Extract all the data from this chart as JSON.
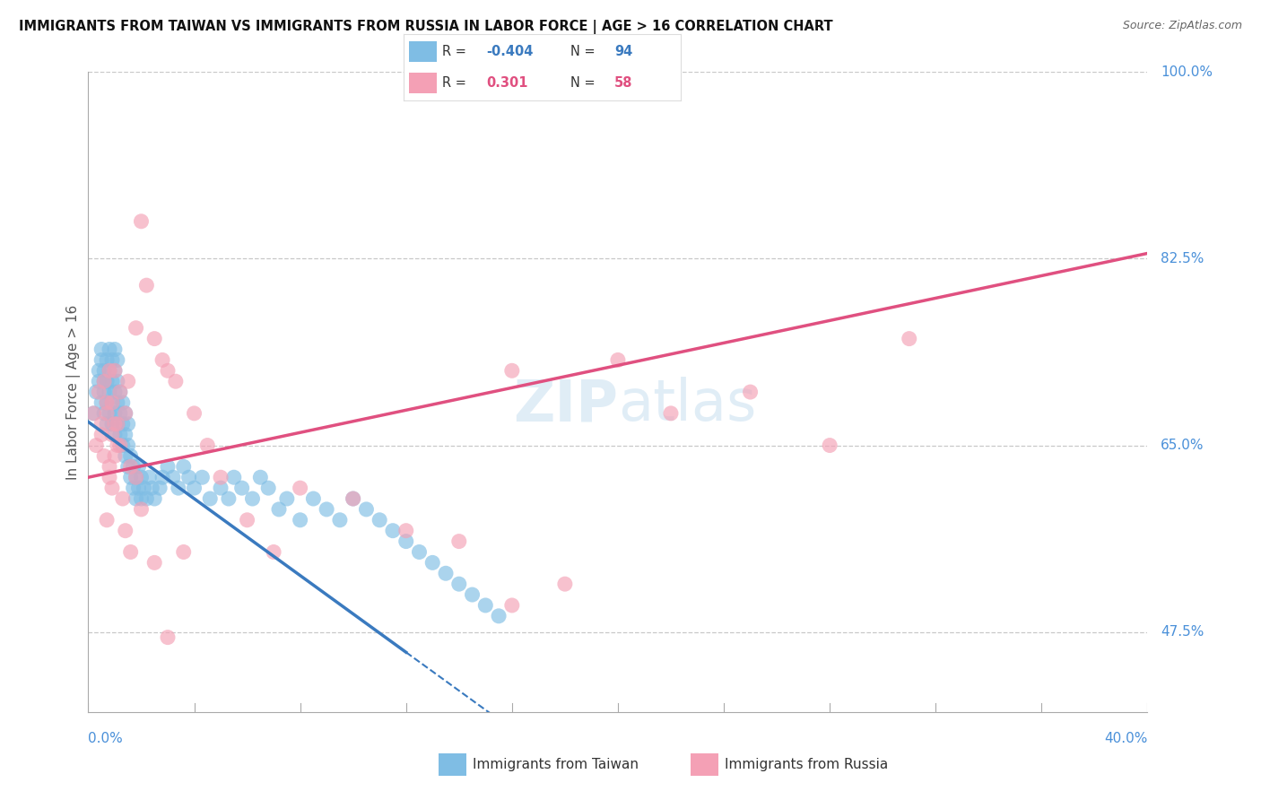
{
  "title": "IMMIGRANTS FROM TAIWAN VS IMMIGRANTS FROM RUSSIA IN LABOR FORCE | AGE > 16 CORRELATION CHART",
  "source": "Source: ZipAtlas.com",
  "yaxis_label": "In Labor Force | Age > 16",
  "legend_taiwan": "Immigrants from Taiwan",
  "legend_russia": "Immigrants from Russia",
  "taiwan_R": "-0.404",
  "taiwan_N": "94",
  "russia_R": "0.301",
  "russia_N": "58",
  "taiwan_color": "#7fbde4",
  "russia_color": "#f4a0b5",
  "taiwan_line_color": "#3a7abf",
  "russia_line_color": "#e05080",
  "background_color": "#ffffff",
  "grid_color": "#c8c8c8",
  "xlim": [
    0.0,
    0.4
  ],
  "ylim": [
    0.4,
    1.0
  ],
  "tick_label_color": "#4a90d9",
  "taiwan_scatter_x": [
    0.002,
    0.003,
    0.004,
    0.004,
    0.005,
    0.005,
    0.005,
    0.006,
    0.006,
    0.006,
    0.006,
    0.007,
    0.007,
    0.007,
    0.007,
    0.008,
    0.008,
    0.008,
    0.008,
    0.009,
    0.009,
    0.009,
    0.009,
    0.01,
    0.01,
    0.01,
    0.01,
    0.01,
    0.011,
    0.011,
    0.011,
    0.011,
    0.012,
    0.012,
    0.012,
    0.013,
    0.013,
    0.013,
    0.014,
    0.014,
    0.014,
    0.015,
    0.015,
    0.015,
    0.016,
    0.016,
    0.017,
    0.017,
    0.018,
    0.018,
    0.019,
    0.019,
    0.02,
    0.02,
    0.021,
    0.022,
    0.023,
    0.024,
    0.025,
    0.027,
    0.028,
    0.03,
    0.032,
    0.034,
    0.036,
    0.038,
    0.04,
    0.043,
    0.046,
    0.05,
    0.053,
    0.055,
    0.058,
    0.062,
    0.065,
    0.068,
    0.072,
    0.075,
    0.08,
    0.085,
    0.09,
    0.095,
    0.1,
    0.105,
    0.11,
    0.115,
    0.12,
    0.125,
    0.13,
    0.135,
    0.14,
    0.145,
    0.15,
    0.155
  ],
  "taiwan_scatter_y": [
    0.68,
    0.7,
    0.72,
    0.71,
    0.69,
    0.73,
    0.74,
    0.68,
    0.7,
    0.72,
    0.71,
    0.67,
    0.69,
    0.71,
    0.73,
    0.68,
    0.7,
    0.72,
    0.74,
    0.67,
    0.69,
    0.71,
    0.73,
    0.66,
    0.68,
    0.7,
    0.72,
    0.74,
    0.67,
    0.69,
    0.71,
    0.73,
    0.66,
    0.68,
    0.7,
    0.65,
    0.67,
    0.69,
    0.64,
    0.66,
    0.68,
    0.63,
    0.65,
    0.67,
    0.62,
    0.64,
    0.61,
    0.63,
    0.6,
    0.62,
    0.61,
    0.63,
    0.6,
    0.62,
    0.61,
    0.6,
    0.62,
    0.61,
    0.6,
    0.61,
    0.62,
    0.63,
    0.62,
    0.61,
    0.63,
    0.62,
    0.61,
    0.62,
    0.6,
    0.61,
    0.6,
    0.62,
    0.61,
    0.6,
    0.62,
    0.61,
    0.59,
    0.6,
    0.58,
    0.6,
    0.59,
    0.58,
    0.6,
    0.59,
    0.58,
    0.57,
    0.56,
    0.55,
    0.54,
    0.53,
    0.52,
    0.51,
    0.5,
    0.49
  ],
  "russia_scatter_x": [
    0.002,
    0.003,
    0.004,
    0.005,
    0.005,
    0.006,
    0.006,
    0.007,
    0.007,
    0.008,
    0.008,
    0.009,
    0.009,
    0.01,
    0.01,
    0.011,
    0.012,
    0.013,
    0.014,
    0.015,
    0.016,
    0.018,
    0.02,
    0.022,
    0.025,
    0.028,
    0.03,
    0.033,
    0.036,
    0.04,
    0.045,
    0.05,
    0.06,
    0.07,
    0.08,
    0.1,
    0.12,
    0.14,
    0.16,
    0.18,
    0.007,
    0.008,
    0.009,
    0.01,
    0.011,
    0.012,
    0.014,
    0.016,
    0.018,
    0.02,
    0.025,
    0.03,
    0.16,
    0.2,
    0.22,
    0.25,
    0.28,
    0.31
  ],
  "russia_scatter_y": [
    0.68,
    0.65,
    0.7,
    0.67,
    0.66,
    0.64,
    0.71,
    0.69,
    0.68,
    0.72,
    0.62,
    0.66,
    0.69,
    0.64,
    0.72,
    0.67,
    0.65,
    0.6,
    0.68,
    0.71,
    0.63,
    0.76,
    0.86,
    0.8,
    0.75,
    0.73,
    0.72,
    0.71,
    0.55,
    0.68,
    0.65,
    0.62,
    0.58,
    0.55,
    0.61,
    0.6,
    0.57,
    0.56,
    0.5,
    0.52,
    0.58,
    0.63,
    0.61,
    0.67,
    0.65,
    0.7,
    0.57,
    0.55,
    0.62,
    0.59,
    0.54,
    0.47,
    0.72,
    0.73,
    0.68,
    0.7,
    0.65,
    0.75
  ],
  "taiwan_line_start_x": 0.0,
  "taiwan_line_end_solid": 0.12,
  "taiwan_line_end_x": 0.4,
  "russia_line_start_x": 0.0,
  "russia_line_end_x": 0.4,
  "taiwan_line_y0": 0.672,
  "taiwan_line_slope": -1.8,
  "russia_line_y0": 0.62,
  "russia_line_slope": 0.525
}
